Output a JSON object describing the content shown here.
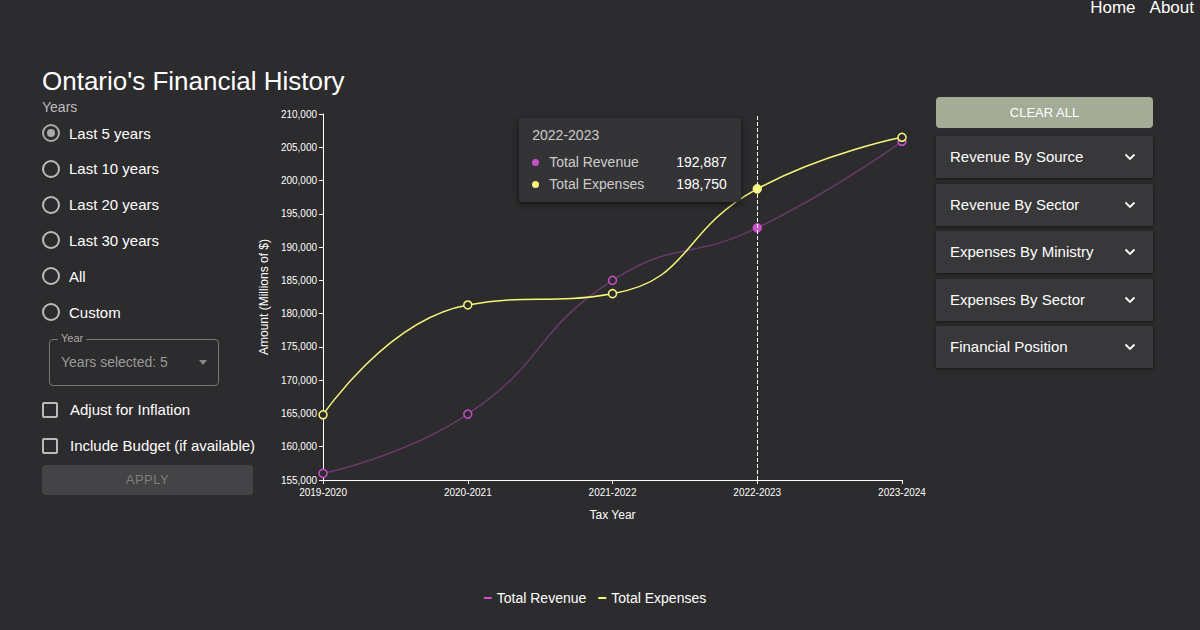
{
  "page": {
    "nav": [
      "Home",
      "About"
    ],
    "title": "Ontario's Financial History",
    "filters": {
      "label": "Years",
      "options": [
        "Last 5 years",
        "Last 10 years",
        "Last 20 years",
        "Last 30 years",
        "All",
        "Custom"
      ],
      "selected": "Last 5 years",
      "select": {
        "label": "Year",
        "value": "Years selected: 5"
      },
      "checkboxes": [
        "Adjust for Inflation",
        "Include Budget (if available)"
      ],
      "button": "APPLY"
    },
    "sidebar": {
      "button": "CLEAR ALL",
      "sections": [
        "Revenue By Source",
        "Revenue By Sector",
        "Expenses By Ministry",
        "Expenses By Sector",
        "Financial Position"
      ]
    },
    "tooltip": {
      "title": "2022-2023"
    }
  },
  "chart_data": {
    "type": "line",
    "x_label": "Tax Year",
    "y_label": "Amount (Millions of $)",
    "categories": [
      "2019-2020",
      "2020-2021",
      "2021-2022",
      "2022-2023",
      "2023-2024"
    ],
    "series": [
      {
        "name": "Total Revenue",
        "color": "#c950c9",
        "values": [
          156000,
          164900,
          185000,
          192887,
          205900
        ]
      },
      {
        "name": "Total Expenses",
        "color": "#f7f77a",
        "values": [
          164800,
          181300,
          183000,
          198750,
          206500
        ]
      }
    ],
    "ylim": [
      155000,
      210000
    ],
    "yticks": [
      {
        "value": 155000,
        "label": "155,000"
      },
      {
        "value": 160000,
        "label": "160,000"
      },
      {
        "value": 165000,
        "label": "165,000"
      },
      {
        "value": 170000,
        "label": "170,000"
      },
      {
        "value": 175000,
        "label": "175,000"
      },
      {
        "value": 180000,
        "label": "180,000"
      },
      {
        "value": 185000,
        "label": "185,000"
      },
      {
        "value": 190000,
        "label": "190,000"
      },
      {
        "value": 195000,
        "label": "195,000"
      },
      {
        "value": 200000,
        "label": "200,000"
      },
      {
        "value": 205000,
        "label": "205,000"
      },
      {
        "value": 210000,
        "label": "210,000"
      }
    ],
    "grid": false,
    "legend": "bottom",
    "marker": "circle",
    "line_style": "solid"
  }
}
